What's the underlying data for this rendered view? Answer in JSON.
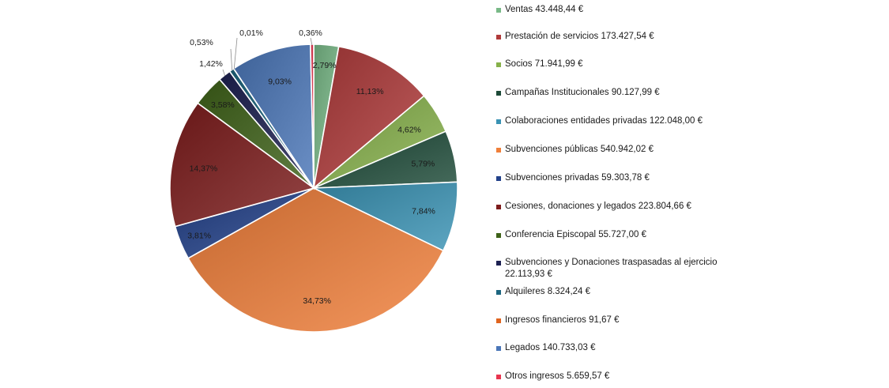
{
  "chart_data": {
    "type": "pie",
    "slices": [
      {
        "label": "Ventas 43.448,44 €",
        "value": 43448.44,
        "pct_label": "2,79%",
        "color": "#79b987"
      },
      {
        "label": "Prestación de servicios 173.427,54 €",
        "value": 173427.54,
        "pct_label": "11,13%",
        "color": "#b03a3a"
      },
      {
        "label": "Socios 71.941,99 €",
        "value": 71941.99,
        "pct_label": "4,62%",
        "color": "#86b14a"
      },
      {
        "label": "Campañas Institucionales 90.127,99 €",
        "value": 90127.99,
        "pct_label": "5,79%",
        "color": "#1d4a38"
      },
      {
        "label": "Colaboraciones entidades privadas 122.048,00 €",
        "value": 122048.0,
        "pct_label": "7,84%",
        "color": "#3a93b4"
      },
      {
        "label": "Subvenciones públicas 540.942,02 €",
        "value": 540942.02,
        "pct_label": "34,73%",
        "color": "#f07f3a"
      },
      {
        "label": "Subvenciones privadas 59.303,78 €",
        "value": 59303.78,
        "pct_label": "3,81%",
        "color": "#22418a"
      },
      {
        "label": "Cesiones, donaciones y legados 223.804,66 €",
        "value": 223804.66,
        "pct_label": "14,37%",
        "color": "#7d1c1c"
      },
      {
        "label": "Conferencia Episcopal 55.727,00 €",
        "value": 55727.0,
        "pct_label": "3,58%",
        "color": "#3e6218"
      },
      {
        "label": "Subvenciones y Donaciones traspasadas al ejercicio 22.113,93 €",
        "value": 22113.93,
        "pct_label": "1,42%",
        "color": "#1d2152"
      },
      {
        "label": "Alquileres 8.324,24 €",
        "value": 8324.24,
        "pct_label": "0,53%",
        "color": "#1d6680"
      },
      {
        "label": "Ingresos financieros 91,67 €",
        "value": 91.67,
        "pct_label": "0,01%",
        "color": "#e0641e"
      },
      {
        "label": "Legados 140.733,03 €",
        "value": 140733.03,
        "pct_label": "9,03%",
        "color": "#4a76b8"
      },
      {
        "label": "Otros ingresos 5.659,57 €",
        "value": 5659.57,
        "pct_label": "0,36%",
        "color": "#e8354f"
      }
    ],
    "legend_placement": "right",
    "start_angle": "top",
    "direction": "clockwise"
  }
}
